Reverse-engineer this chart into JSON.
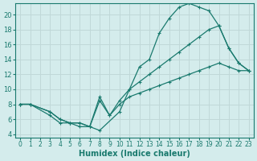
{
  "xlabel": "Humidex (Indice chaleur)",
  "bg_color": "#d4ecec",
  "grid_color": "#c0d8d8",
  "line_color": "#1a7a6e",
  "xlim": [
    -0.5,
    23.5
  ],
  "ylim": [
    3.5,
    21.5
  ],
  "xticks": [
    0,
    1,
    2,
    3,
    4,
    5,
    6,
    7,
    8,
    9,
    10,
    11,
    12,
    13,
    14,
    15,
    16,
    17,
    18,
    19,
    20,
    21,
    22,
    23
  ],
  "yticks": [
    4,
    6,
    8,
    10,
    12,
    14,
    16,
    18,
    20
  ],
  "line1_x": [
    0,
    1,
    3,
    4,
    5,
    6,
    7,
    8,
    10,
    11,
    12,
    13,
    14,
    15,
    16,
    17,
    18,
    19,
    20,
    21,
    22,
    23
  ],
  "line1_y": [
    8,
    8,
    6.5,
    5.5,
    5.5,
    5,
    5,
    4.5,
    7,
    10,
    13,
    14,
    17.5,
    19.5,
    21,
    21.5,
    21,
    20.5,
    18.5,
    15.5,
    13.5,
    12.5
  ],
  "line2_x": [
    0,
    1,
    3,
    4,
    5,
    6,
    7,
    8,
    9,
    10,
    11,
    12,
    13,
    14,
    15,
    16,
    17,
    18,
    19,
    20,
    21,
    22,
    23
  ],
  "line2_y": [
    8,
    8,
    7,
    6,
    5.5,
    5.5,
    5,
    9,
    6.5,
    8.5,
    10,
    11,
    12,
    13,
    14,
    15,
    16,
    17,
    18,
    18.5,
    15.5,
    13.5,
    12.5
  ],
  "line3_x": [
    0,
    1,
    3,
    4,
    5,
    6,
    7,
    8,
    9,
    10,
    11,
    12,
    13,
    14,
    15,
    16,
    17,
    18,
    19,
    20,
    21,
    22,
    23
  ],
  "line3_y": [
    8,
    8,
    7,
    6,
    5.5,
    5.5,
    5,
    8.5,
    6.5,
    8,
    9,
    9.5,
    10,
    10.5,
    11,
    11.5,
    12,
    12.5,
    13,
    13.5,
    13,
    12.5,
    12.5
  ]
}
